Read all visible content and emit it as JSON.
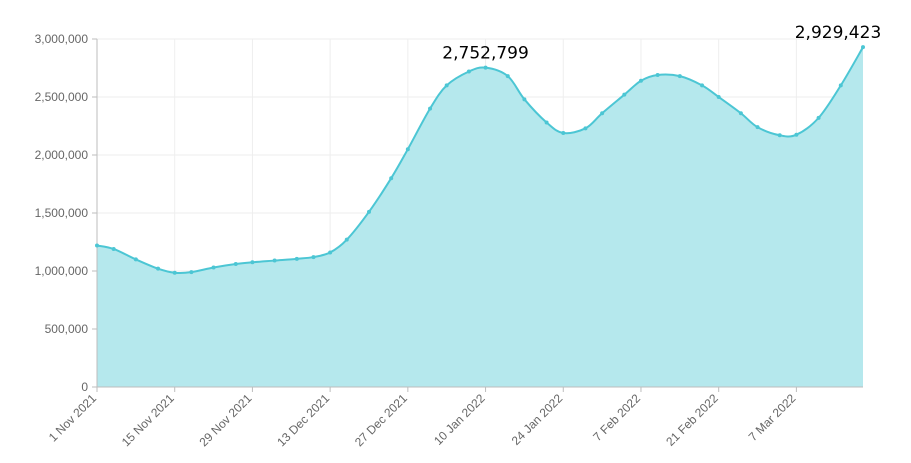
{
  "colors": {
    "line": "#4cc6d4",
    "fill": "#b5e8ed",
    "grid": "#eeeeee",
    "axis": "#bdbdbd",
    "tick_text": "#666666"
  },
  "chart_data": {
    "type": "area",
    "title": "",
    "xlabel": "",
    "ylabel": "",
    "xlim": [
      "2021-11-01",
      "2022-03-19"
    ],
    "ylim": [
      0,
      3000000
    ],
    "grid": true,
    "legend": "none",
    "y_ticks": [
      "0",
      "500,000",
      "1,000,000",
      "1,500,000",
      "2,000,000",
      "2,500,000",
      "3,000,000"
    ],
    "x_ticks": [
      {
        "date": "2021-11-01",
        "label": "1 Nov 2021"
      },
      {
        "date": "2021-11-15",
        "label": "15 Nov 2021"
      },
      {
        "date": "2021-11-29",
        "label": "29 Nov 2021"
      },
      {
        "date": "2021-12-13",
        "label": "13 Dec 2021"
      },
      {
        "date": "2021-12-27",
        "label": "27 Dec 2021"
      },
      {
        "date": "2022-01-10",
        "label": "10 Jan 2022"
      },
      {
        "date": "2022-01-24",
        "label": "24 Jan 2022"
      },
      {
        "date": "2022-02-07",
        "label": "7 Feb 2022"
      },
      {
        "date": "2022-02-21",
        "label": "21 Feb 2022"
      },
      {
        "date": "2022-03-07",
        "label": "7 Mar 2022"
      }
    ],
    "series": [
      {
        "x": [
          "2021-11-01",
          "2021-11-04",
          "2021-11-08",
          "2021-11-12",
          "2021-11-15",
          "2021-11-18",
          "2021-11-22",
          "2021-11-26",
          "2021-11-29",
          "2021-12-03",
          "2021-12-07",
          "2021-12-10",
          "2021-12-13",
          "2021-12-16",
          "2021-12-20",
          "2021-12-24",
          "2021-12-27",
          "2021-12-31",
          "2022-01-03",
          "2022-01-07",
          "2022-01-10",
          "2022-01-14",
          "2022-01-17",
          "2022-01-21",
          "2022-01-24",
          "2022-01-28",
          "2022-01-31",
          "2022-02-04",
          "2022-02-07",
          "2022-02-10",
          "2022-02-14",
          "2022-02-18",
          "2022-02-21",
          "2022-02-25",
          "2022-02-28",
          "2022-03-04",
          "2022-03-07",
          "2022-03-11",
          "2022-03-15",
          "2022-03-19"
        ],
        "y": [
          1220000,
          1190000,
          1100000,
          1020000,
          985000,
          990000,
          1030000,
          1060000,
          1075000,
          1090000,
          1105000,
          1120000,
          1160000,
          1270000,
          1510000,
          1800000,
          2050000,
          2400000,
          2600000,
          2720000,
          2752799,
          2680000,
          2480000,
          2280000,
          2190000,
          2230000,
          2360000,
          2520000,
          2640000,
          2690000,
          2680000,
          2600000,
          2500000,
          2360000,
          2240000,
          2170000,
          2175000,
          2320000,
          2600000,
          2929423
        ]
      }
    ],
    "annotations": [
      {
        "date": "2022-01-10",
        "value": 2752799,
        "text": "2,752,799"
      },
      {
        "date": "2022-03-19",
        "value": 2929423,
        "text": "2,929,423"
      }
    ]
  }
}
